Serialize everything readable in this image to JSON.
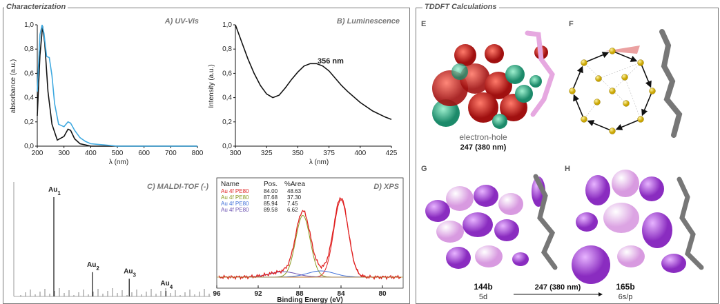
{
  "sections": {
    "left_title": "Characterization",
    "right_title": "TDDFT Calculations"
  },
  "colors": {
    "black": "#111111",
    "blue": "#3fa9e0",
    "red": "#e02020",
    "purple": "#8a35c8",
    "teal": "#2ea886"
  },
  "chart_data": [
    {
      "id": "uvvis",
      "type": "line",
      "panel_label": "A) UV-Vis",
      "xlabel": "λ (nm)",
      "ylabel": "absorbance (a.u.)",
      "xlim": [
        200,
        800
      ],
      "ylim": [
        0,
        1.0
      ],
      "xticks": [
        "200",
        "300",
        "400",
        "500",
        "600",
        "700",
        "800"
      ],
      "yticks": [
        "0,0",
        "0,2",
        "0,4",
        "0,6",
        "0,8",
        "1,0"
      ],
      "series": [
        {
          "color": "#111111",
          "x": [
            200,
            210,
            220,
            228,
            240,
            255,
            275,
            300,
            315,
            325,
            340,
            360,
            380,
            400,
            450,
            500,
            600,
            700,
            800
          ],
          "y": [
            0.25,
            0.75,
            0.99,
            0.85,
            0.45,
            0.18,
            0.05,
            0.08,
            0.14,
            0.13,
            0.06,
            0.02,
            0.01,
            0.0,
            0.0,
            0.0,
            0.0,
            0.0,
            0.0
          ]
        },
        {
          "color": "#3fa9e0",
          "x": [
            200,
            210,
            218,
            225,
            235,
            245,
            255,
            265,
            280,
            300,
            315,
            325,
            340,
            360,
            380,
            400,
            450,
            500,
            600,
            700,
            800
          ],
          "y": [
            0.45,
            0.92,
            1.0,
            0.93,
            0.74,
            0.73,
            0.58,
            0.35,
            0.18,
            0.16,
            0.2,
            0.19,
            0.13,
            0.07,
            0.04,
            0.02,
            0.01,
            0.0,
            0.0,
            0.0,
            0.0
          ]
        }
      ]
    },
    {
      "id": "lumi",
      "type": "line",
      "panel_label": "B) Luminescence",
      "xlabel": "λ (nm)",
      "ylabel": "Intensity (a.u.)",
      "xlim": [
        300,
        425
      ],
      "ylim": [
        0,
        1.0
      ],
      "xticks": [
        "300",
        "325",
        "350",
        "375",
        "400",
        "425"
      ],
      "yticks": [
        "0,0",
        "0,2",
        "0,4",
        "0,6",
        "0,8",
        "1,0"
      ],
      "annotation": "356 nm",
      "series": [
        {
          "color": "#111111",
          "x": [
            300,
            305,
            310,
            315,
            320,
            325,
            330,
            335,
            340,
            345,
            350,
            355,
            360,
            365,
            370,
            375,
            380,
            385,
            390,
            400,
            410,
            420,
            425
          ],
          "y": [
            1.0,
            0.86,
            0.72,
            0.6,
            0.5,
            0.43,
            0.4,
            0.42,
            0.48,
            0.55,
            0.61,
            0.66,
            0.68,
            0.68,
            0.66,
            0.62,
            0.56,
            0.5,
            0.45,
            0.36,
            0.29,
            0.24,
            0.22
          ]
        }
      ]
    },
    {
      "id": "maldi",
      "type": "bar",
      "panel_label": "C) MALDI-TOF (-)",
      "peaks": [
        {
          "label": "Au",
          "sub": "1",
          "x": 0.2,
          "h": 0.9
        },
        {
          "label": "Au",
          "sub": "2",
          "x": 0.4,
          "h": 0.22
        },
        {
          "label": "Au",
          "sub": "3",
          "x": 0.59,
          "h": 0.16
        },
        {
          "label": "Au",
          "sub": "4",
          "x": 0.78,
          "h": 0.05
        }
      ]
    },
    {
      "id": "xps",
      "type": "line",
      "panel_label": "D) XPS",
      "xlabel": "Binding Energy (eV)",
      "xlim": [
        96,
        78
      ],
      "xticks": [
        "96",
        "92",
        "88",
        "84",
        "80"
      ],
      "table_header": [
        "Name",
        "Pos.",
        "%Area"
      ],
      "table_rows": [
        {
          "name": "Au 4f PE80",
          "pos": "84.00",
          "area": "48.63",
          "color": "#e02020"
        },
        {
          "name": "Au 4f PE80",
          "pos": "87.68",
          "area": "37.30",
          "color": "#8a9a20"
        },
        {
          "name": "Au 4f PE80",
          "pos": "85.94",
          "area": "7.45",
          "color": "#3f6fd8"
        },
        {
          "name": "Au 4f PE80",
          "pos": "89.58",
          "area": "6.62",
          "color": "#6a50b0"
        }
      ]
    }
  ],
  "tddft": {
    "E": {
      "label": "E",
      "caption1": "electron-hole",
      "caption2": "247 (380 nm)"
    },
    "F": {
      "label": "F"
    },
    "G": {
      "label": "G",
      "caption1": "144b",
      "caption2": "5d"
    },
    "H": {
      "label": "H",
      "caption1": "165b",
      "caption2": "6s/p"
    },
    "arrow_label": "247 (380 nm)"
  }
}
